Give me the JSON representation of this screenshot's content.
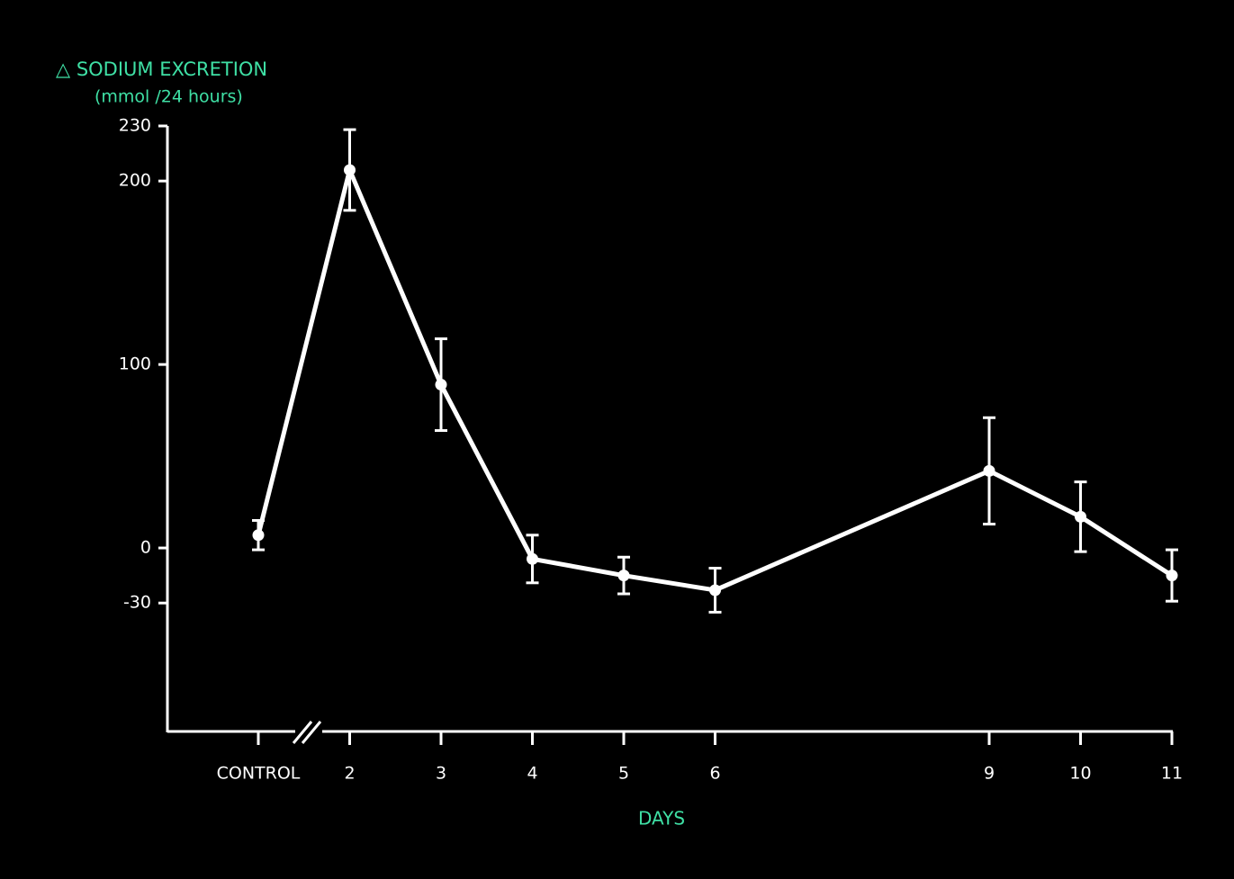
{
  "chart_data": {
    "type": "line",
    "title": "△ SODIUM  EXCRETION",
    "subtitle": "(mmol /24 hours)",
    "x_label": "DAYS",
    "x": [
      1,
      2,
      3,
      4,
      5,
      6,
      9,
      10,
      11
    ],
    "series": [
      {
        "color": "#ffffff",
        "values": [
          7,
          206,
          89,
          -6,
          -15,
          -23,
          42,
          17,
          -15
        ],
        "errors": [
          8,
          22,
          25,
          13,
          10,
          12,
          29,
          19,
          14
        ]
      }
    ],
    "xlim": [
      0,
      11
    ],
    "xticks": [
      {
        "value": 1,
        "label": "CONTROL"
      },
      2,
      3,
      4,
      5,
      6,
      9,
      10,
      11
    ],
    "ylim": [
      -100,
      230
    ],
    "yticks": [
      -30,
      0,
      100,
      200,
      230
    ],
    "title_color": "#3fe0a5",
    "control_color": "#ff3355"
  }
}
